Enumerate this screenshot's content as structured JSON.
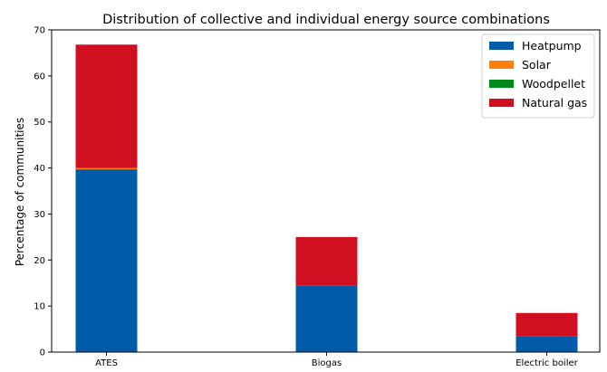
{
  "chart_data": {
    "type": "bar",
    "stacked": true,
    "title": "Distribution of collective and individual energy source combinations",
    "xlabel": "",
    "ylabel": "Percentage of communities",
    "categories": [
      "ATES",
      "Biogas",
      "Electric boiler"
    ],
    "ylim": [
      0,
      70
    ],
    "yticks": [
      0,
      10,
      20,
      30,
      40,
      50,
      60,
      70
    ],
    "grid": false,
    "legend_position": "top-right",
    "series": [
      {
        "name": "Heatpump",
        "color": "#005ca8",
        "values": [
          39.7,
          14.5,
          3.5
        ]
      },
      {
        "name": "Solar",
        "color": "#ff7f0e",
        "values": [
          0.3,
          0,
          0
        ]
      },
      {
        "name": "Woodpellet",
        "color": "#008a1a",
        "values": [
          0,
          0,
          0
        ]
      },
      {
        "name": "Natural gas",
        "color": "#d01020",
        "values": [
          26.8,
          10.5,
          5.0
        ]
      }
    ]
  }
}
